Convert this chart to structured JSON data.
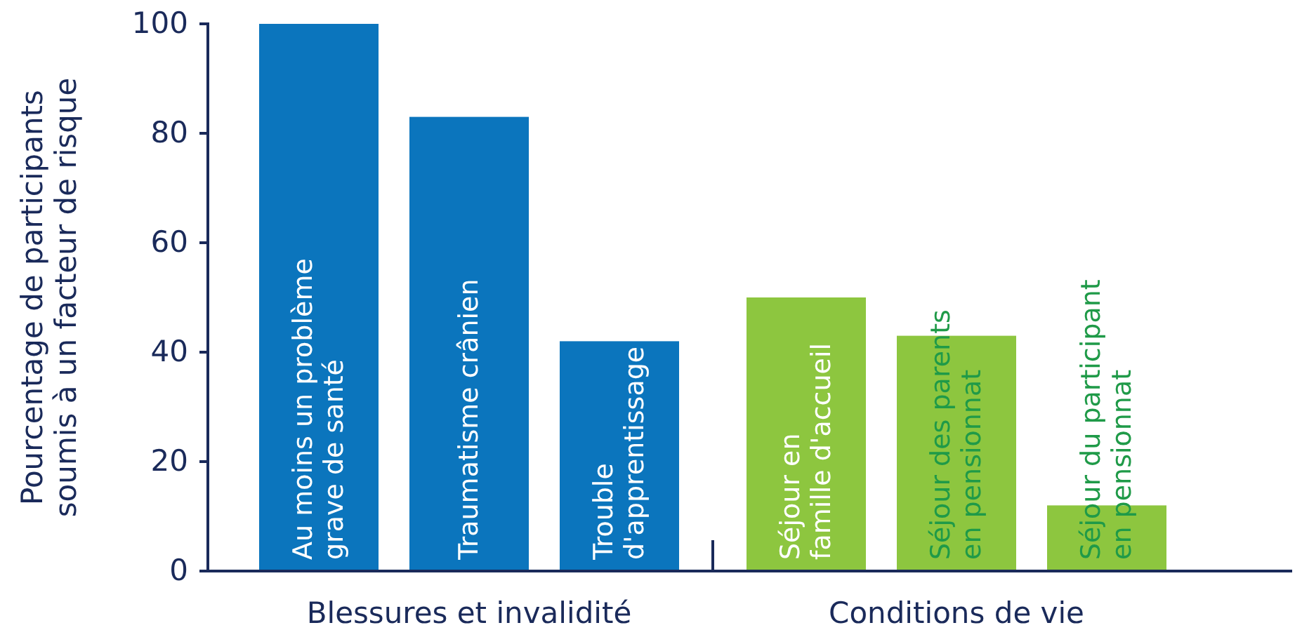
{
  "chart_data": {
    "type": "bar",
    "ylabel": "Pourcentage de participants soumis à un facteur de risque",
    "categories": [
      "Au moins un problème grave de santé",
      "Traumatisme crânien",
      "Trouble d'apprentissage",
      "Séjour en famille d'accueil",
      "Séjour des parents en pensionnat",
      "Séjour du participant en pensionnat"
    ],
    "series": [
      {
        "name": "Blessures et invalidité",
        "color": "#0b75bd",
        "values": [
          100,
          83,
          42,
          null,
          null,
          null
        ]
      },
      {
        "name": "Conditions de vie",
        "color": "#8dc63f",
        "values": [
          null,
          null,
          null,
          50,
          43,
          12
        ]
      }
    ],
    "ylim": [
      0,
      100
    ],
    "yticks": [
      0,
      20,
      40,
      60,
      80,
      100
    ]
  }
}
